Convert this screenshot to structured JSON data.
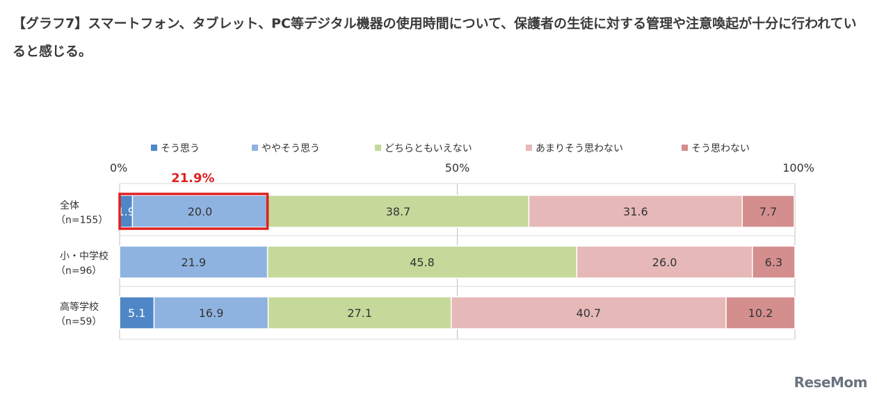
{
  "title": "【グラフ7】スマートフォン、タブレット、PC等デジタル機器の使用時間について、保護者の生徒に対する管理や注意喚起が十分に行われていると感じる。",
  "watermark": "ReseMom",
  "chart_data": {
    "type": "bar",
    "orientation": "horizontal",
    "stacked": true,
    "percent": true,
    "title": "",
    "xlim": [
      0,
      100
    ],
    "x_ticks": [
      "0%",
      "50%",
      "100%"
    ],
    "legend_position": "top",
    "categories": [
      [
        "全体",
        "（n=155）"
      ],
      [
        "小・中学校",
        "（n=96）"
      ],
      [
        "高等学校",
        "（n=59）"
      ]
    ],
    "series": [
      {
        "name": "そう思う",
        "color": "#4f86c6",
        "values": [
          1.9,
          0,
          5.1
        ],
        "labels": [
          "1.9",
          "",
          "5.1"
        ],
        "light_label": true
      },
      {
        "name": "ややそう思う",
        "color": "#8fb3e0",
        "values": [
          20.0,
          21.9,
          16.9
        ],
        "labels": [
          "20.0",
          "21.9",
          "16.9"
        ],
        "light_label": false
      },
      {
        "name": "どちらともいえない",
        "color": "#c5d99a",
        "values": [
          38.7,
          45.8,
          27.1
        ],
        "labels": [
          "38.7",
          "45.8",
          "27.1"
        ],
        "light_label": false
      },
      {
        "name": "あまりそう思わない",
        "color": "#e6b8b8",
        "values": [
          31.6,
          26.0,
          40.7
        ],
        "labels": [
          "31.6",
          "26.0",
          "40.7"
        ],
        "light_label": false
      },
      {
        "name": "そう思わない",
        "color": "#d48e8e",
        "values": [
          7.7,
          6.3,
          10.2
        ],
        "labels": [
          "7.7",
          "6.3",
          "10.2"
        ],
        "light_label": false
      }
    ],
    "annotation": {
      "text": "21.9%",
      "category_index": 0,
      "span_series": [
        0,
        1
      ],
      "color": "#e02020"
    },
    "grid": false
  }
}
